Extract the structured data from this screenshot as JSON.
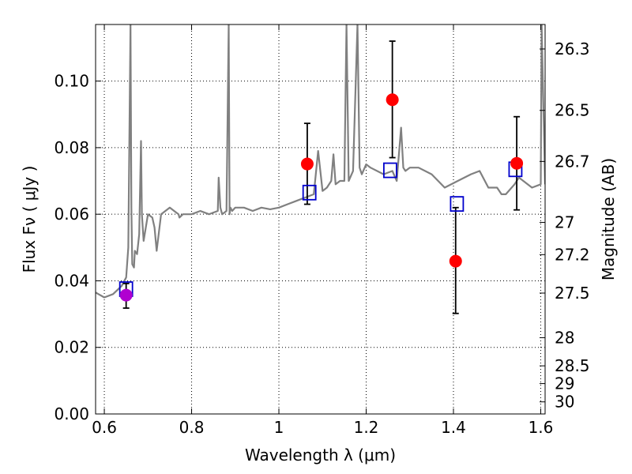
{
  "chart_data": {
    "type": "scatter",
    "xlabel": "Wavelength  λ (μm)",
    "ylabel": "Flux  Fν  ( μJy )",
    "y2label": "Magnitude (AB)",
    "xlim": [
      0.58,
      1.61
    ],
    "ylim": [
      0.0,
      0.117
    ],
    "grid": true,
    "x_ticks": [
      0.6,
      0.8,
      1.0,
      1.2,
      1.4,
      1.6
    ],
    "x_tick_labels": [
      "0.6",
      "0.8",
      "1",
      "1.2",
      "1.4",
      "1.6"
    ],
    "y_ticks": [
      0.0,
      0.02,
      0.04,
      0.06,
      0.08,
      0.1
    ],
    "y_tick_labels": [
      "0.00",
      "0.02",
      "0.04",
      "0.06",
      "0.08",
      "0.10"
    ],
    "mag_ticks": [
      26.3,
      26.5,
      26.7,
      27,
      27.2,
      27.5,
      28,
      28.5,
      29,
      30
    ],
    "mag_tick_labels": [
      "26.3",
      "26.5",
      "26.7",
      "27",
      "27.2",
      "27.5",
      "28",
      "28.5",
      "29",
      "30"
    ],
    "model_spectrum": {
      "color": "#808080",
      "x": [
        0.58,
        0.6,
        0.62,
        0.64,
        0.65,
        0.655,
        0.66,
        0.662,
        0.664,
        0.668,
        0.67,
        0.675,
        0.68,
        0.684,
        0.686,
        0.69,
        0.7,
        0.71,
        0.715,
        0.72,
        0.73,
        0.74,
        0.75,
        0.76,
        0.77,
        0.772,
        0.78,
        0.8,
        0.82,
        0.84,
        0.86,
        0.862,
        0.866,
        0.87,
        0.88,
        0.885,
        0.887,
        0.889,
        0.893,
        0.9,
        0.92,
        0.94,
        0.96,
        0.98,
        1.0,
        1.02,
        1.04,
        1.06,
        1.08,
        1.09,
        1.1,
        1.11,
        1.12,
        1.125,
        1.13,
        1.14,
        1.15,
        1.155,
        1.16,
        1.17,
        1.18,
        1.185,
        1.19,
        1.2,
        1.21,
        1.24,
        1.26,
        1.27,
        1.28,
        1.285,
        1.29,
        1.3,
        1.32,
        1.35,
        1.38,
        1.41,
        1.44,
        1.46,
        1.48,
        1.5,
        1.51,
        1.52,
        1.54,
        1.55,
        1.56,
        1.58,
        1.6,
        1.602,
        1.61
      ],
      "y": [
        0.0365,
        0.035,
        0.036,
        0.0385,
        0.041,
        0.05,
        0.117,
        0.062,
        0.045,
        0.044,
        0.049,
        0.048,
        0.054,
        0.082,
        0.06,
        0.052,
        0.06,
        0.059,
        0.056,
        0.049,
        0.06,
        0.061,
        0.062,
        0.061,
        0.06,
        0.059,
        0.06,
        0.06,
        0.061,
        0.06,
        0.061,
        0.071,
        0.062,
        0.06,
        0.061,
        0.117,
        0.06,
        0.062,
        0.061,
        0.062,
        0.062,
        0.061,
        0.062,
        0.0615,
        0.062,
        0.063,
        0.064,
        0.065,
        0.066,
        0.079,
        0.067,
        0.068,
        0.07,
        0.078,
        0.069,
        0.07,
        0.07,
        0.117,
        0.07,
        0.073,
        0.117,
        0.074,
        0.072,
        0.075,
        0.074,
        0.072,
        0.073,
        0.07,
        0.086,
        0.074,
        0.073,
        0.074,
        0.074,
        0.072,
        0.068,
        0.07,
        0.072,
        0.073,
        0.068,
        0.068,
        0.066,
        0.066,
        0.069,
        0.071,
        0.07,
        0.068,
        0.069,
        0.117,
        0.069
      ]
    },
    "points": [
      {
        "x": 0.65,
        "y": 0.0357,
        "yerr_low": 0.0318,
        "yerr_high": 0.0392,
        "color": "#b000d0"
      },
      {
        "x": 1.065,
        "y": 0.0751,
        "yerr_low": 0.063,
        "yerr_high": 0.0873,
        "color": "#ff0000"
      },
      {
        "x": 1.26,
        "y": 0.0944,
        "yerr_low": 0.077,
        "yerr_high": 0.112,
        "color": "#ff0000"
      },
      {
        "x": 1.405,
        "y": 0.0459,
        "yerr_low": 0.0302,
        "yerr_high": 0.062,
        "color": "#ff0000"
      },
      {
        "x": 1.545,
        "y": 0.0753,
        "yerr_low": 0.0613,
        "yerr_high": 0.0893,
        "color": "#ff0000"
      }
    ],
    "model_photometry": {
      "color": "#0000cc",
      "x": [
        0.65,
        1.07,
        1.255,
        1.408,
        1.542
      ],
      "y": [
        0.0375,
        0.0665,
        0.0732,
        0.0631,
        0.0735
      ]
    }
  }
}
